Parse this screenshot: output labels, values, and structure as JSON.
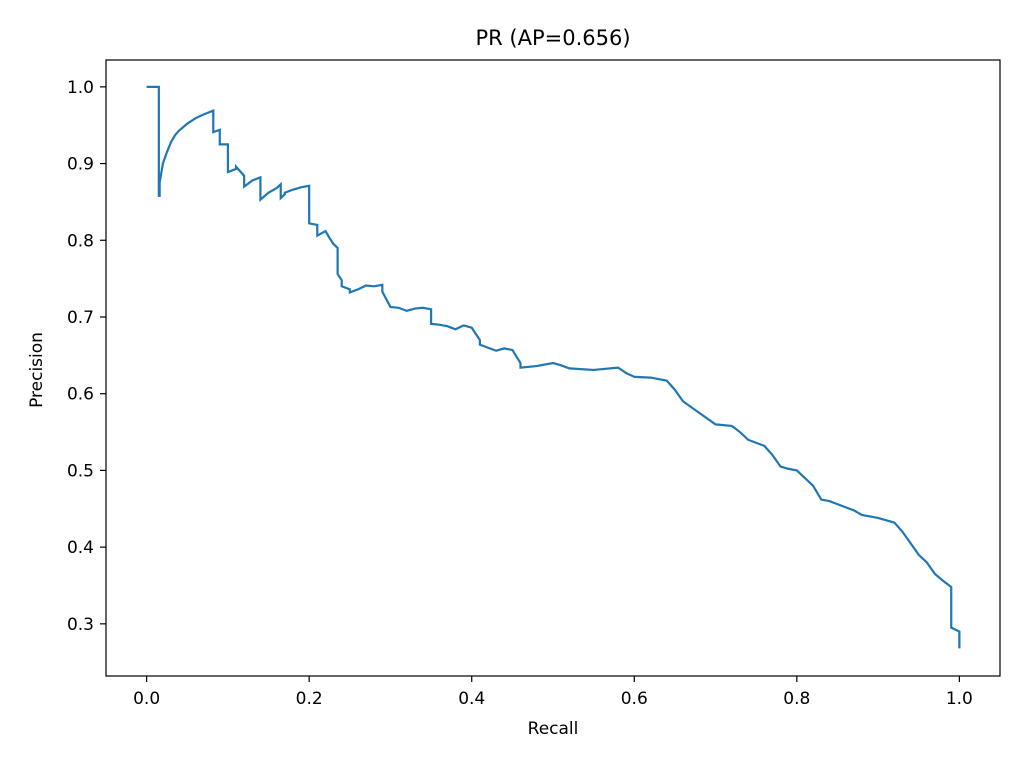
{
  "chart_data": {
    "type": "line",
    "title": "PR (AP=0.656)",
    "xlabel": "Recall",
    "ylabel": "Precision",
    "xlim": [
      -0.05,
      1.05
    ],
    "ylim": [
      0.232,
      1.035
    ],
    "xticks": [
      0.0,
      0.2,
      0.4,
      0.6,
      0.8,
      1.0
    ],
    "xtick_labels": [
      "0.0",
      "0.2",
      "0.4",
      "0.6",
      "0.8",
      "1.0"
    ],
    "yticks": [
      0.3,
      0.4,
      0.5,
      0.6,
      0.7,
      0.8,
      0.9,
      1.0
    ],
    "ytick_labels": [
      "0.3",
      "0.4",
      "0.5",
      "0.6",
      "0.7",
      "0.8",
      "0.9",
      "1.0"
    ],
    "grid": false,
    "legend": "none",
    "series": [
      {
        "color": "#1f77b4",
        "x": [
          0.0,
          0.015,
          0.015,
          0.016,
          0.016,
          0.02,
          0.025,
          0.03,
          0.035,
          0.04,
          0.05,
          0.06,
          0.07,
          0.082,
          0.082,
          0.09,
          0.09,
          0.1,
          0.1,
          0.11,
          0.11,
          0.12,
          0.12,
          0.13,
          0.14,
          0.14,
          0.15,
          0.16,
          0.165,
          0.165,
          0.17,
          0.17,
          0.18,
          0.19,
          0.2,
          0.2,
          0.21,
          0.21,
          0.22,
          0.225,
          0.23,
          0.235,
          0.235,
          0.24,
          0.24,
          0.25,
          0.25,
          0.26,
          0.27,
          0.28,
          0.29,
          0.29,
          0.3,
          0.31,
          0.32,
          0.33,
          0.34,
          0.35,
          0.35,
          0.36,
          0.37,
          0.38,
          0.39,
          0.4,
          0.41,
          0.41,
          0.43,
          0.44,
          0.45,
          0.46,
          0.46,
          0.48,
          0.5,
          0.51,
          0.52,
          0.55,
          0.58,
          0.59,
          0.6,
          0.62,
          0.64,
          0.65,
          0.66,
          0.68,
          0.7,
          0.72,
          0.73,
          0.74,
          0.76,
          0.77,
          0.78,
          0.79,
          0.8,
          0.81,
          0.82,
          0.83,
          0.84,
          0.86,
          0.87,
          0.88,
          0.9,
          0.92,
          0.93,
          0.94,
          0.95,
          0.96,
          0.97,
          0.98,
          0.99,
          0.99,
          1.0,
          1.0
        ],
        "y": [
          1.0,
          1.0,
          0.858,
          0.858,
          0.875,
          0.9,
          0.915,
          0.928,
          0.937,
          0.943,
          0.952,
          0.959,
          0.964,
          0.969,
          0.941,
          0.944,
          0.925,
          0.925,
          0.889,
          0.893,
          0.896,
          0.884,
          0.87,
          0.878,
          0.882,
          0.853,
          0.862,
          0.868,
          0.873,
          0.855,
          0.86,
          0.862,
          0.866,
          0.869,
          0.871,
          0.822,
          0.82,
          0.806,
          0.812,
          0.803,
          0.795,
          0.79,
          0.756,
          0.748,
          0.74,
          0.736,
          0.732,
          0.736,
          0.741,
          0.74,
          0.742,
          0.733,
          0.713,
          0.712,
          0.708,
          0.711,
          0.712,
          0.71,
          0.691,
          0.69,
          0.688,
          0.684,
          0.689,
          0.686,
          0.67,
          0.664,
          0.656,
          0.659,
          0.657,
          0.64,
          0.634,
          0.636,
          0.64,
          0.637,
          0.633,
          0.631,
          0.634,
          0.627,
          0.622,
          0.621,
          0.617,
          0.605,
          0.59,
          0.575,
          0.56,
          0.558,
          0.55,
          0.54,
          0.532,
          0.52,
          0.505,
          0.502,
          0.5,
          0.49,
          0.48,
          0.462,
          0.46,
          0.452,
          0.448,
          0.442,
          0.438,
          0.432,
          0.42,
          0.405,
          0.39,
          0.38,
          0.365,
          0.356,
          0.348,
          0.295,
          0.29,
          0.268
        ]
      }
    ]
  }
}
